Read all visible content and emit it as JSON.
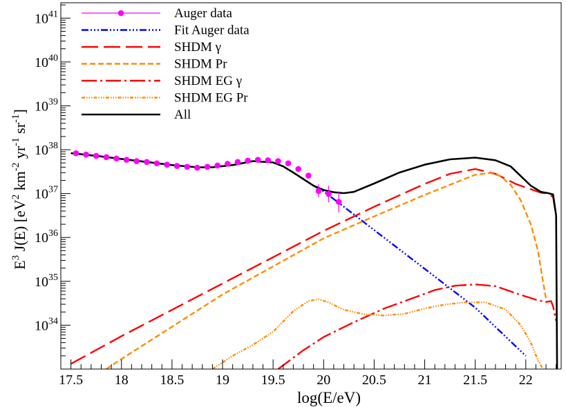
{
  "chart_data": {
    "type": "line",
    "xlabel": "log(E/eV)",
    "ylabel": {
      "parts": [
        {
          "t": "E",
          "s": "base"
        },
        {
          "t": "3",
          "s": "sup"
        },
        {
          "t": " J(E)  [eV",
          "s": "base"
        },
        {
          "t": "2",
          "s": "sup"
        },
        {
          "t": " km",
          "s": "base"
        },
        {
          "t": "-2",
          "s": "sup"
        },
        {
          "t": " yr",
          "s": "base"
        },
        {
          "t": "-1",
          "s": "sup"
        },
        {
          "t": " sr",
          "s": "base"
        },
        {
          "t": "-1",
          "s": "sup"
        },
        {
          "t": "]",
          "s": "base"
        }
      ]
    },
    "y_scale": "log",
    "xlim": [
      17.4,
      22.35
    ],
    "ylim_log10": [
      33.0,
      41.35
    ],
    "x_ticks": [
      {
        "value": 17.5,
        "label": "17.5"
      },
      {
        "value": 18,
        "label": "18"
      },
      {
        "value": 18.5,
        "label": "18.5"
      },
      {
        "value": 19,
        "label": "19"
      },
      {
        "value": 19.5,
        "label": "19.5"
      },
      {
        "value": 20,
        "label": "20"
      },
      {
        "value": 20.5,
        "label": "20.5"
      },
      {
        "value": 21,
        "label": "21"
      },
      {
        "value": 21.5,
        "label": "21.5"
      },
      {
        "value": 22,
        "label": "22"
      }
    ],
    "y_ticks": [
      {
        "exp": 34,
        "base": "10",
        "sup": "34"
      },
      {
        "exp": 35,
        "base": "10",
        "sup": "35"
      },
      {
        "exp": 36,
        "base": "10",
        "sup": "36"
      },
      {
        "exp": 37,
        "base": "10",
        "sup": "37"
      },
      {
        "exp": 38,
        "base": "10",
        "sup": "38"
      },
      {
        "exp": 39,
        "base": "10",
        "sup": "39"
      },
      {
        "exp": 40,
        "base": "10",
        "sup": "40"
      },
      {
        "exp": 41,
        "base": "10",
        "sup": "41"
      }
    ],
    "grid": false,
    "legend_position": "top-left",
    "series": [
      {
        "name": "Auger data",
        "kind": "points",
        "color": "#ff00ff",
        "x": [
          17.55,
          17.65,
          17.75,
          17.85,
          17.95,
          18.05,
          18.15,
          18.25,
          18.35,
          18.45,
          18.55,
          18.65,
          18.75,
          18.85,
          18.95,
          19.05,
          19.15,
          19.25,
          19.35,
          19.45,
          19.55,
          19.65,
          19.75,
          19.85,
          19.95,
          20.05,
          20.15
        ],
        "y_log10": [
          37.92,
          37.89,
          37.86,
          37.83,
          37.8,
          37.77,
          37.74,
          37.72,
          37.69,
          37.66,
          37.63,
          37.61,
          37.59,
          37.61,
          37.64,
          37.68,
          37.72,
          37.75,
          37.77,
          37.76,
          37.74,
          37.69,
          37.56,
          37.41,
          37.06,
          36.99,
          36.81
        ],
        "err_log10": [
          0,
          0,
          0,
          0,
          0,
          0,
          0,
          0,
          0,
          0,
          0,
          0,
          0,
          0,
          0,
          0,
          0,
          0,
          0,
          0,
          0,
          0,
          0,
          0.03,
          0.15,
          0.19,
          0.24
        ]
      },
      {
        "name": "Fit Auger data",
        "kind": "line",
        "color": "#0000ff",
        "dash": "10 3 2 3 2 3 2 3",
        "x": [
          17.5,
          17.75,
          18.0,
          18.25,
          18.5,
          18.75,
          18.9,
          19.1,
          19.3,
          19.5,
          19.6,
          19.7,
          19.8,
          19.9,
          20.0,
          20.2,
          21.5,
          22.0
        ],
        "y_log10": [
          37.92,
          37.86,
          37.79,
          37.72,
          37.65,
          37.6,
          37.6,
          37.65,
          37.74,
          37.71,
          37.62,
          37.48,
          37.33,
          37.18,
          37.05,
          36.7,
          34.4,
          33.3
        ]
      },
      {
        "name": "SHDM γ",
        "kind": "line",
        "color": "#ff0000",
        "dash": "24 8",
        "x": [
          17.5,
          18.0,
          19.0,
          20.0,
          20.5,
          21.0,
          21.25,
          21.5,
          21.7,
          21.9,
          22.05,
          22.15,
          22.22,
          22.27,
          22.3
        ],
        "y_log10": [
          33.12,
          33.75,
          34.95,
          36.15,
          36.7,
          37.22,
          37.45,
          37.56,
          37.45,
          37.22,
          37.1,
          37.02,
          37.0,
          36.92,
          36.5
        ]
      },
      {
        "name": "SHDM Pr",
        "kind": "line",
        "color": "#ff8c00",
        "dash": "8 4",
        "x": [
          17.85,
          18.0,
          19.0,
          20.0,
          20.5,
          21.0,
          21.25,
          21.5,
          21.65,
          21.75,
          21.85,
          21.95,
          22.05,
          22.12,
          22.17,
          22.2
        ],
        "y_log10": [
          33.0,
          33.23,
          34.7,
          35.98,
          36.48,
          36.97,
          37.2,
          37.43,
          37.47,
          37.4,
          37.2,
          36.85,
          36.3,
          35.7,
          35.0,
          34.6
        ]
      },
      {
        "name": "SHDM EG γ",
        "kind": "line",
        "color": "#ff0000",
        "dash": "22 5 3 5",
        "x": [
          19.55,
          19.8,
          20.0,
          20.3,
          20.6,
          20.9,
          21.1,
          21.3,
          21.5,
          21.7,
          21.9,
          22.1,
          22.2,
          22.25,
          22.27,
          22.3
        ],
        "y_log10": [
          33.0,
          33.43,
          33.73,
          34.07,
          34.38,
          34.63,
          34.8,
          34.9,
          34.93,
          34.89,
          34.73,
          34.58,
          34.53,
          34.55,
          34.43,
          34.1
        ]
      },
      {
        "name": "SHDM EG Pr",
        "kind": "line",
        "color": "#ff8c00",
        "dash": "5 2 1.5 2 1.5 2 1.5 2",
        "x": [
          18.9,
          19.1,
          19.3,
          19.5,
          19.7,
          19.85,
          19.95,
          20.05,
          20.2,
          20.4,
          20.6,
          20.8,
          21.0,
          21.2,
          21.4,
          21.6,
          21.8,
          21.95,
          22.05,
          22.12,
          22.17
        ],
        "y_log10": [
          33.0,
          33.3,
          33.55,
          33.85,
          34.32,
          34.55,
          34.59,
          34.52,
          34.35,
          34.25,
          34.22,
          34.26,
          34.38,
          34.47,
          34.52,
          34.52,
          34.36,
          34.0,
          33.6,
          33.2,
          33.0
        ]
      },
      {
        "name": "All",
        "kind": "line",
        "color": "#000000",
        "dash": "",
        "x": [
          17.5,
          17.75,
          18.0,
          18.25,
          18.5,
          18.75,
          18.9,
          19.1,
          19.3,
          19.5,
          19.6,
          19.7,
          19.8,
          19.9,
          20.0,
          20.1,
          20.2,
          20.3,
          20.5,
          20.75,
          21.0,
          21.25,
          21.5,
          21.7,
          21.85,
          21.95,
          22.05,
          22.15,
          22.22,
          22.27,
          22.3,
          22.31
        ],
        "y_log10": [
          37.92,
          37.86,
          37.79,
          37.72,
          37.65,
          37.6,
          37.6,
          37.65,
          37.74,
          37.71,
          37.62,
          37.48,
          37.33,
          37.18,
          37.08,
          37.03,
          37.01,
          37.04,
          37.23,
          37.48,
          37.66,
          37.78,
          37.82,
          37.76,
          37.62,
          37.4,
          37.18,
          37.04,
          37.01,
          36.98,
          36.5,
          33.0
        ]
      }
    ]
  }
}
